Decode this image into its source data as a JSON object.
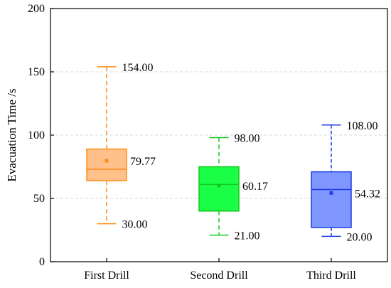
{
  "chart_data": {
    "type": "box",
    "title": "",
    "xlabel": "",
    "ylabel": "Evacuation Time /s",
    "ylim": [
      0,
      200
    ],
    "yticks": [
      0,
      50,
      100,
      150,
      200
    ],
    "grid": true,
    "categories": [
      "First Drill",
      "Second Drill",
      "Third Drill"
    ],
    "boxes": [
      {
        "category": "First Drill",
        "min": 30.0,
        "q1": 64,
        "median": 73,
        "q3": 89,
        "max": 154.0,
        "mean": 79.77,
        "labels": {
          "max": "154.00",
          "mean": "79.77",
          "min": "30.00"
        },
        "fill": "#ffc08a",
        "stroke": "#ff8c1a"
      },
      {
        "category": "Second Drill",
        "min": 21.0,
        "q1": 40,
        "median": 61,
        "q3": 75,
        "max": 98.0,
        "mean": 60.17,
        "labels": {
          "max": "98.00",
          "mean": "60.17",
          "min": "21.00"
        },
        "fill": "#1aff45",
        "stroke": "#14c81e"
      },
      {
        "category": "Third Drill",
        "min": 20.0,
        "q1": 27,
        "median": 57,
        "q3": 71,
        "max": 108.0,
        "mean": 54.32,
        "labels": {
          "max": "108.00",
          "mean": "54.32",
          "min": "20.00"
        },
        "fill": "#7f96ff",
        "stroke": "#1f3de6"
      }
    ]
  }
}
